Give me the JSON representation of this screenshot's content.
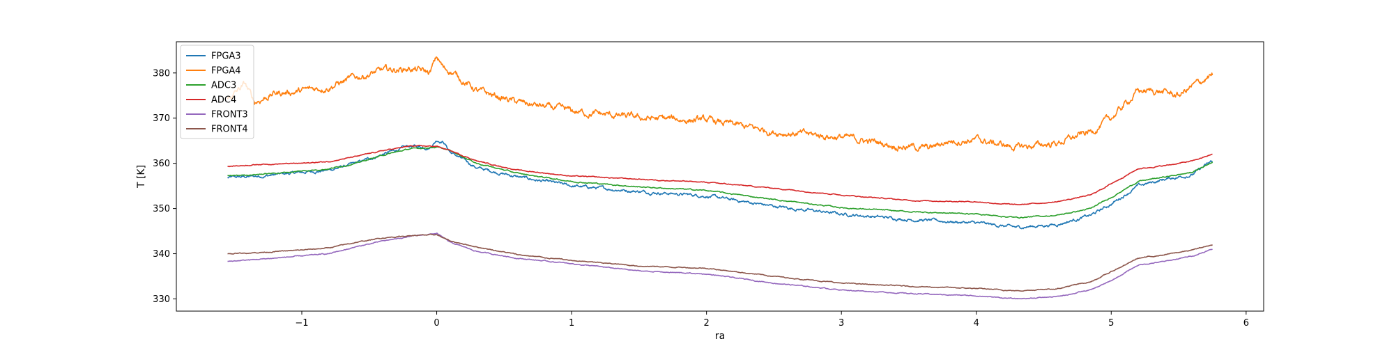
{
  "chart_data": {
    "type": "line",
    "title": "",
    "xlabel": "ra",
    "ylabel": "T [K]",
    "xlim": [
      -1.93,
      6.13
    ],
    "ylim": [
      327.3,
      386.9
    ],
    "xticks": [
      -1,
      0,
      1,
      2,
      3,
      4,
      5,
      6
    ],
    "yticks": [
      330,
      340,
      350,
      360,
      370,
      380
    ],
    "grid": false,
    "legend_position": "top-left",
    "series": [
      {
        "name": "FPGA3",
        "color": "#1f77b4",
        "noise": 0.4,
        "points": [
          [
            -1.55,
            356.8
          ],
          [
            -1.3,
            357.2
          ],
          [
            -1.0,
            358.0
          ],
          [
            -0.8,
            358.5
          ],
          [
            -0.6,
            360.0
          ],
          [
            -0.4,
            362.0
          ],
          [
            -0.2,
            363.8
          ],
          [
            -0.05,
            363.5
          ],
          [
            0.0,
            365.2
          ],
          [
            0.05,
            364.8
          ],
          [
            0.1,
            362.5
          ],
          [
            0.3,
            359.0
          ],
          [
            0.6,
            357.0
          ],
          [
            1.0,
            355.0
          ],
          [
            1.5,
            353.8
          ],
          [
            2.0,
            352.8
          ],
          [
            2.5,
            350.5
          ],
          [
            3.0,
            348.8
          ],
          [
            3.5,
            347.6
          ],
          [
            4.0,
            346.8
          ],
          [
            4.3,
            345.8
          ],
          [
            4.6,
            346.5
          ],
          [
            4.85,
            348.5
          ],
          [
            5.0,
            351.0
          ],
          [
            5.2,
            355.0
          ],
          [
            5.4,
            356.5
          ],
          [
            5.6,
            357.5
          ],
          [
            5.75,
            360.5
          ]
        ]
      },
      {
        "name": "FPGA4",
        "color": "#ff7f0e",
        "noise": 0.9,
        "points": [
          [
            -1.55,
            374.0
          ],
          [
            -1.42,
            377.5
          ],
          [
            -1.35,
            373.5
          ],
          [
            -1.2,
            375.5
          ],
          [
            -1.0,
            376.0
          ],
          [
            -0.8,
            377.0
          ],
          [
            -0.6,
            379.0
          ],
          [
            -0.4,
            380.5
          ],
          [
            -0.2,
            381.0
          ],
          [
            -0.05,
            380.0
          ],
          [
            0.0,
            383.5
          ],
          [
            0.05,
            381.0
          ],
          [
            0.1,
            380.5
          ],
          [
            0.3,
            376.0
          ],
          [
            0.6,
            373.5
          ],
          [
            1.0,
            371.5
          ],
          [
            1.5,
            370.0
          ],
          [
            2.0,
            369.5
          ],
          [
            2.5,
            367.0
          ],
          [
            3.0,
            365.8
          ],
          [
            3.4,
            364.0
          ],
          [
            3.65,
            363.3
          ],
          [
            3.8,
            365.0
          ],
          [
            4.0,
            365.2
          ],
          [
            4.3,
            363.5
          ],
          [
            4.6,
            364.5
          ],
          [
            4.85,
            367.0
          ],
          [
            5.0,
            370.0
          ],
          [
            5.1,
            373.0
          ],
          [
            5.2,
            376.0
          ],
          [
            5.35,
            376.0
          ],
          [
            5.5,
            375.0
          ],
          [
            5.6,
            377.0
          ],
          [
            5.75,
            379.5
          ]
        ]
      },
      {
        "name": "ADC3",
        "color": "#2ca02c",
        "noise": 0.15,
        "points": [
          [
            -1.55,
            357.2
          ],
          [
            -1.2,
            357.8
          ],
          [
            -1.0,
            358.3
          ],
          [
            -0.8,
            358.8
          ],
          [
            -0.6,
            360.0
          ],
          [
            -0.4,
            361.8
          ],
          [
            -0.2,
            363.2
          ],
          [
            0.0,
            363.6
          ],
          [
            0.1,
            362.8
          ],
          [
            0.3,
            360.0
          ],
          [
            0.6,
            357.8
          ],
          [
            1.0,
            356.0
          ],
          [
            1.5,
            354.8
          ],
          [
            2.0,
            354.0
          ],
          [
            2.5,
            352.0
          ],
          [
            3.0,
            350.2
          ],
          [
            3.5,
            349.3
          ],
          [
            4.0,
            348.8
          ],
          [
            4.3,
            348.0
          ],
          [
            4.6,
            348.5
          ],
          [
            4.85,
            350.0
          ],
          [
            5.0,
            352.5
          ],
          [
            5.2,
            356.0
          ],
          [
            5.4,
            357.0
          ],
          [
            5.6,
            358.0
          ],
          [
            5.75,
            360.3
          ]
        ]
      },
      {
        "name": "ADC4",
        "color": "#d62728",
        "noise": 0.12,
        "points": [
          [
            -1.55,
            359.3
          ],
          [
            -1.3,
            359.8
          ],
          [
            -1.0,
            360.0
          ],
          [
            -0.8,
            360.4
          ],
          [
            -0.6,
            361.5
          ],
          [
            -0.4,
            362.8
          ],
          [
            -0.2,
            363.8
          ],
          [
            0.0,
            363.8
          ],
          [
            0.1,
            362.8
          ],
          [
            0.3,
            360.5
          ],
          [
            0.6,
            358.5
          ],
          [
            1.0,
            357.2
          ],
          [
            1.5,
            356.5
          ],
          [
            2.0,
            355.8
          ],
          [
            2.5,
            354.5
          ],
          [
            3.0,
            353.0
          ],
          [
            3.5,
            351.8
          ],
          [
            4.0,
            351.5
          ],
          [
            4.3,
            350.8
          ],
          [
            4.6,
            351.5
          ],
          [
            4.85,
            353.0
          ],
          [
            5.0,
            355.5
          ],
          [
            5.2,
            358.8
          ],
          [
            5.4,
            359.5
          ],
          [
            5.6,
            360.5
          ],
          [
            5.75,
            362.0
          ]
        ]
      },
      {
        "name": "FRONT3",
        "color": "#9467bd",
        "noise": 0.12,
        "points": [
          [
            -1.55,
            338.3
          ],
          [
            -1.3,
            338.8
          ],
          [
            -1.0,
            339.5
          ],
          [
            -0.8,
            340.0
          ],
          [
            -0.6,
            341.5
          ],
          [
            -0.4,
            342.8
          ],
          [
            -0.2,
            343.8
          ],
          [
            0.0,
            344.5
          ],
          [
            0.1,
            342.5
          ],
          [
            0.3,
            340.5
          ],
          [
            0.6,
            339.0
          ],
          [
            1.0,
            337.8
          ],
          [
            1.5,
            336.2
          ],
          [
            2.0,
            335.5
          ],
          [
            2.5,
            333.5
          ],
          [
            3.0,
            332.0
          ],
          [
            3.5,
            331.2
          ],
          [
            4.0,
            330.7
          ],
          [
            4.3,
            330.0
          ],
          [
            4.6,
            330.5
          ],
          [
            4.85,
            332.0
          ],
          [
            5.0,
            334.0
          ],
          [
            5.2,
            337.5
          ],
          [
            5.4,
            338.3
          ],
          [
            5.6,
            339.5
          ],
          [
            5.75,
            341.0
          ]
        ]
      },
      {
        "name": "FRONT4",
        "color": "#8c564b",
        "noise": 0.12,
        "points": [
          [
            -1.55,
            340.0
          ],
          [
            -1.3,
            340.3
          ],
          [
            -1.0,
            340.8
          ],
          [
            -0.8,
            341.3
          ],
          [
            -0.6,
            342.5
          ],
          [
            -0.4,
            343.5
          ],
          [
            -0.2,
            344.0
          ],
          [
            0.0,
            344.2
          ],
          [
            0.1,
            342.8
          ],
          [
            0.3,
            341.5
          ],
          [
            0.6,
            339.8
          ],
          [
            1.0,
            338.5
          ],
          [
            1.5,
            337.3
          ],
          [
            2.0,
            336.8
          ],
          [
            2.5,
            335.0
          ],
          [
            3.0,
            333.5
          ],
          [
            3.5,
            332.8
          ],
          [
            4.0,
            332.3
          ],
          [
            4.3,
            331.8
          ],
          [
            4.6,
            332.3
          ],
          [
            4.85,
            333.8
          ],
          [
            5.0,
            336.0
          ],
          [
            5.2,
            339.0
          ],
          [
            5.4,
            339.8
          ],
          [
            5.6,
            340.8
          ],
          [
            5.75,
            342.0
          ]
        ]
      }
    ]
  }
}
